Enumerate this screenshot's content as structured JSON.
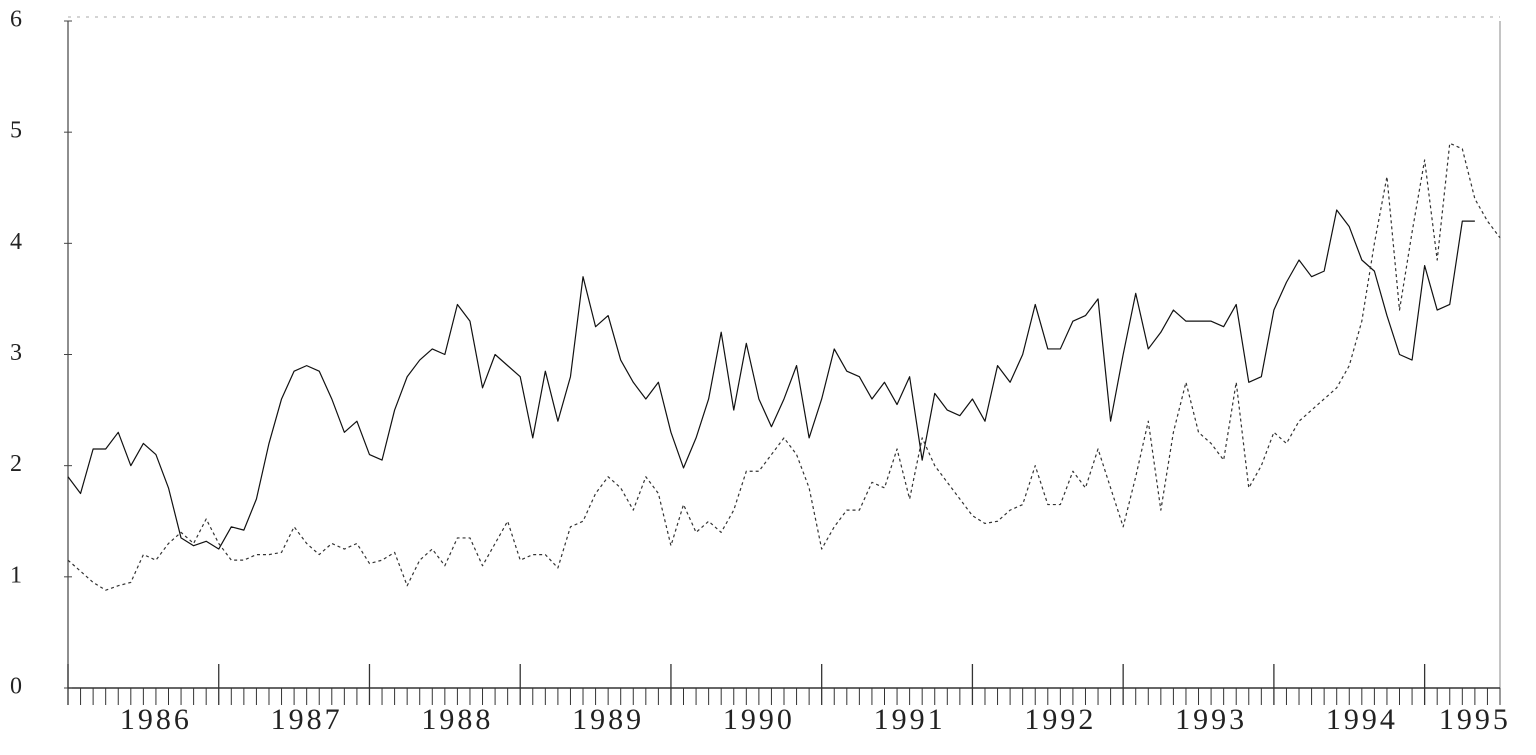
{
  "chart_data": {
    "type": "line",
    "categories": [
      null,
      null,
      null,
      null,
      null,
      null,
      null,
      "1986",
      null,
      null,
      null,
      null,
      null,
      null,
      null,
      null,
      null,
      null,
      null,
      "1987",
      null,
      null,
      null,
      null,
      null,
      null,
      null,
      null,
      null,
      null,
      null,
      "1988",
      null,
      null,
      null,
      null,
      null,
      null,
      null,
      null,
      null,
      null,
      null,
      "1989",
      null,
      null,
      null,
      null,
      null,
      null,
      null,
      null,
      null,
      null,
      null,
      "1990",
      null,
      null,
      null,
      null,
      null,
      null,
      null,
      null,
      null,
      null,
      null,
      "1991",
      null,
      null,
      null,
      null,
      null,
      null,
      null,
      null,
      null,
      null,
      null,
      "1992",
      null,
      null,
      null,
      null,
      null,
      null,
      null,
      null,
      null,
      null,
      null,
      "1993",
      null,
      null,
      null,
      null,
      null,
      null,
      null,
      null,
      null,
      null,
      null,
      "1994",
      null,
      null,
      null,
      null,
      null,
      null,
      null,
      null,
      "1995",
      null,
      null
    ],
    "series": [
      {
        "color": "#111111",
        "style": "solid",
        "values": [
          1.9,
          1.75,
          2.15,
          2.15,
          2.3,
          2.0,
          2.2,
          2.1,
          1.8,
          1.35,
          1.28,
          1.32,
          1.25,
          1.45,
          1.42,
          1.7,
          2.2,
          2.6,
          2.85,
          2.9,
          2.85,
          2.6,
          2.3,
          2.4,
          2.1,
          2.05,
          2.5,
          2.8,
          2.95,
          3.05,
          3.0,
          3.45,
          3.3,
          2.7,
          3.0,
          2.9,
          2.8,
          2.25,
          2.85,
          2.4,
          2.8,
          3.7,
          3.25,
          3.35,
          2.95,
          2.75,
          2.6,
          2.75,
          2.3,
          1.98,
          2.25,
          2.6,
          3.2,
          2.5,
          3.1,
          2.6,
          2.35,
          2.6,
          2.9,
          2.25,
          2.6,
          3.05,
          2.85,
          2.8,
          2.6,
          2.75,
          2.55,
          2.8,
          2.05,
          2.65,
          2.5,
          2.45,
          2.6,
          2.4,
          2.9,
          2.75,
          3.0,
          3.45,
          3.05,
          3.05,
          3.3,
          3.35,
          3.5,
          2.4,
          3.0,
          3.55,
          3.05,
          3.2,
          3.4,
          3.3,
          3.3,
          3.3,
          3.25,
          3.45,
          2.75,
          2.8,
          3.4,
          3.65,
          3.85,
          3.7,
          3.75,
          4.3,
          4.15,
          3.85,
          3.75,
          3.35,
          3.0,
          2.95,
          3.8,
          3.4,
          3.45,
          4.2,
          4.2,
          null,
          null
        ]
      },
      {
        "color": "#333333",
        "style": "dashed",
        "values": [
          1.15,
          1.05,
          0.95,
          0.88,
          0.92,
          0.95,
          1.2,
          1.15,
          1.3,
          1.4,
          1.3,
          1.52,
          1.3,
          1.15,
          1.15,
          1.2,
          1.2,
          1.22,
          1.45,
          1.3,
          1.2,
          1.3,
          1.25,
          1.3,
          1.12,
          1.15,
          1.22,
          0.92,
          1.15,
          1.25,
          1.1,
          1.35,
          1.35,
          1.1,
          1.3,
          1.5,
          1.15,
          1.2,
          1.2,
          1.08,
          1.45,
          1.5,
          1.75,
          1.9,
          1.8,
          1.6,
          1.9,
          1.75,
          1.28,
          1.65,
          1.4,
          1.5,
          1.4,
          1.6,
          1.95,
          1.95,
          2.1,
          2.25,
          2.1,
          1.8,
          1.25,
          1.45,
          1.6,
          1.6,
          1.85,
          1.8,
          2.15,
          1.7,
          2.25,
          2.0,
          1.85,
          1.7,
          1.55,
          1.48,
          1.5,
          1.6,
          1.65,
          2.0,
          1.65,
          1.65,
          1.95,
          1.8,
          2.15,
          1.8,
          1.45,
          1.9,
          2.4,
          1.6,
          2.3,
          2.75,
          2.3,
          2.2,
          2.05,
          2.75,
          1.8,
          2.0,
          2.3,
          2.2,
          2.4,
          2.5,
          2.6,
          2.7,
          2.9,
          3.3,
          4.0,
          4.6,
          3.4,
          4.1,
          4.75,
          3.85,
          4.9,
          4.85,
          4.4,
          4.2,
          4.05
        ]
      }
    ],
    "ylim": [
      0,
      6
    ],
    "yticks": [
      0,
      1,
      2,
      3,
      4,
      5,
      6
    ],
    "grid": false
  }
}
